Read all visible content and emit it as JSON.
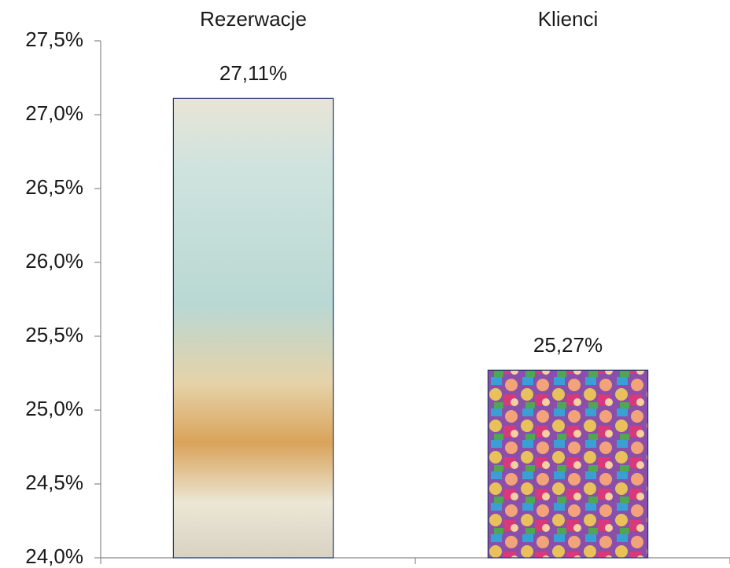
{
  "chart_data": {
    "type": "bar",
    "categories": [
      "Rezerwacje",
      "Klienci"
    ],
    "values": [
      27.11,
      25.27
    ],
    "value_labels": [
      "27,11%",
      "25,27%"
    ],
    "ylim": [
      24,
      27.5
    ],
    "yticks": [
      {
        "value": 24,
        "label": "24,0%"
      },
      {
        "value": 24.5,
        "label": "24,5%"
      },
      {
        "value": 25,
        "label": "25,0%"
      },
      {
        "value": 25.5,
        "label": "25,5%"
      },
      {
        "value": 26,
        "label": "26,0%"
      },
      {
        "value": 26.5,
        "label": "26,5%"
      },
      {
        "value": 27,
        "label": "27,0%"
      },
      {
        "value": 27.5,
        "label": "27,5%"
      }
    ],
    "border_color": "#1f3864"
  }
}
